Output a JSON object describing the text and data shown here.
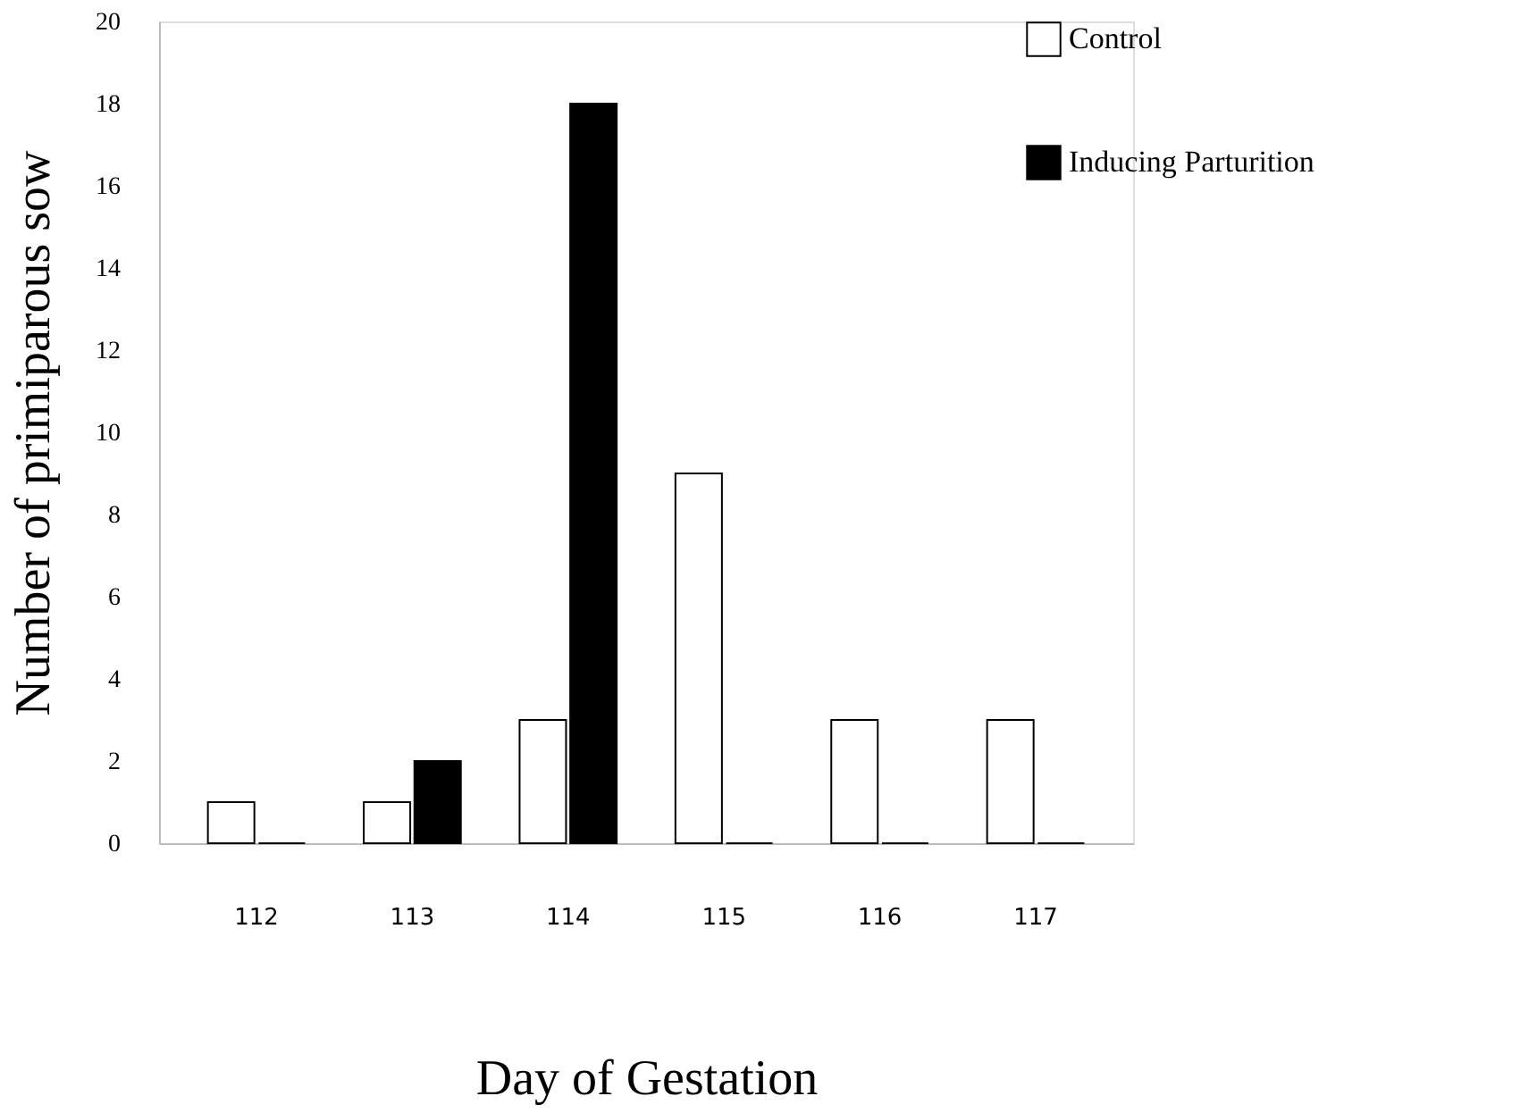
{
  "chart_data": {
    "type": "bar",
    "xlabel": "Day of Gestation",
    "ylabel": "Number of primiparous sow",
    "categories": [
      "112",
      "113",
      "114",
      "115",
      "116",
      "117"
    ],
    "series": [
      {
        "name": "Control",
        "color": "#ffffff",
        "values": [
          1,
          1,
          3,
          9,
          3,
          3
        ]
      },
      {
        "name": "Inducing Parturition",
        "color": "#000000",
        "values": [
          0,
          2,
          18,
          0,
          0,
          0
        ]
      }
    ],
    "ylim": [
      0,
      20
    ],
    "yticks": [
      0,
      2,
      4,
      6,
      8,
      10,
      12,
      14,
      16,
      18,
      20
    ],
    "grid": false,
    "legend": "right"
  }
}
